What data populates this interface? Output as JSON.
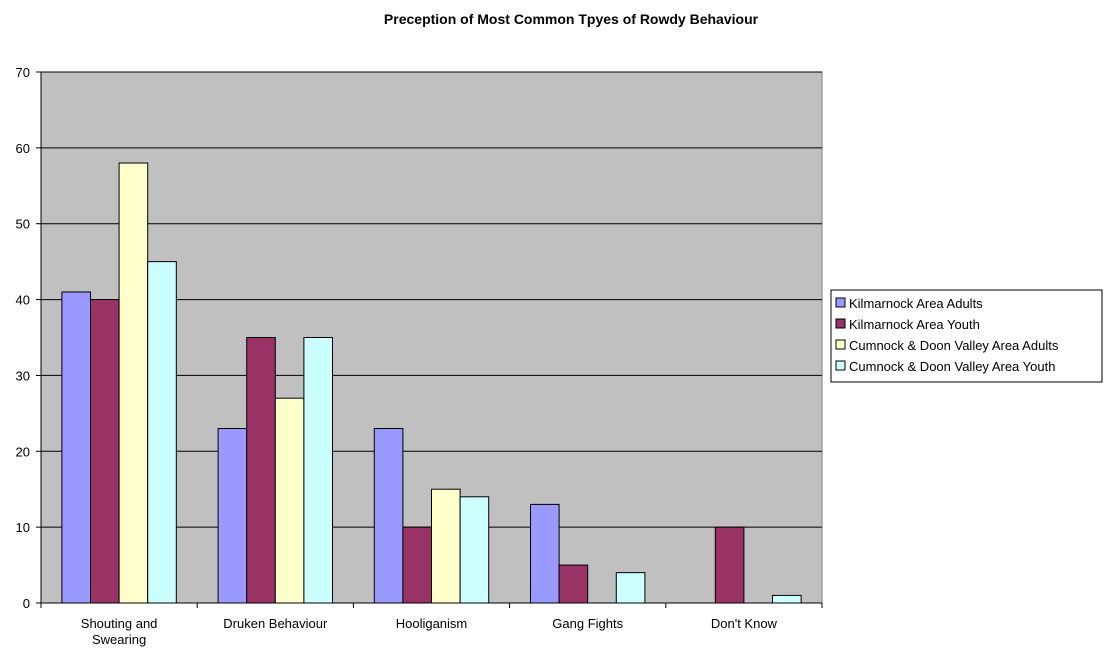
{
  "chart_data": {
    "type": "bar",
    "title": "Preception of Most Common Tpyes of Rowdy Behaviour",
    "xlabel": "",
    "ylabel": "",
    "categories": [
      [
        "Shouting and",
        "Swearing"
      ],
      [
        "Druken Behaviour"
      ],
      [
        "Hooliganism"
      ],
      [
        "Gang Fights"
      ],
      [
        "Don't Know"
      ]
    ],
    "ylim": [
      0,
      70
    ],
    "yticks": [
      0,
      10,
      20,
      30,
      40,
      50,
      60,
      70
    ],
    "grid": true,
    "legend_position": "right",
    "series": [
      {
        "name": "Kilmarnock Area Adults",
        "color": "#9999ff",
        "values": [
          41,
          23,
          23,
          13,
          0
        ]
      },
      {
        "name": "Kilmarnock Area Youth",
        "color": "#993366",
        "values": [
          40,
          35,
          10,
          5,
          10
        ]
      },
      {
        "name": "Cumnock & Doon Valley Area Adults",
        "color": "#ffffcc",
        "values": [
          58,
          27,
          15,
          0,
          0
        ]
      },
      {
        "name": "Cumnock & Doon Valley Area Youth",
        "color": "#ccffff",
        "values": [
          45,
          35,
          14,
          4,
          1
        ]
      }
    ],
    "plot_background": "#c0c0c0"
  }
}
